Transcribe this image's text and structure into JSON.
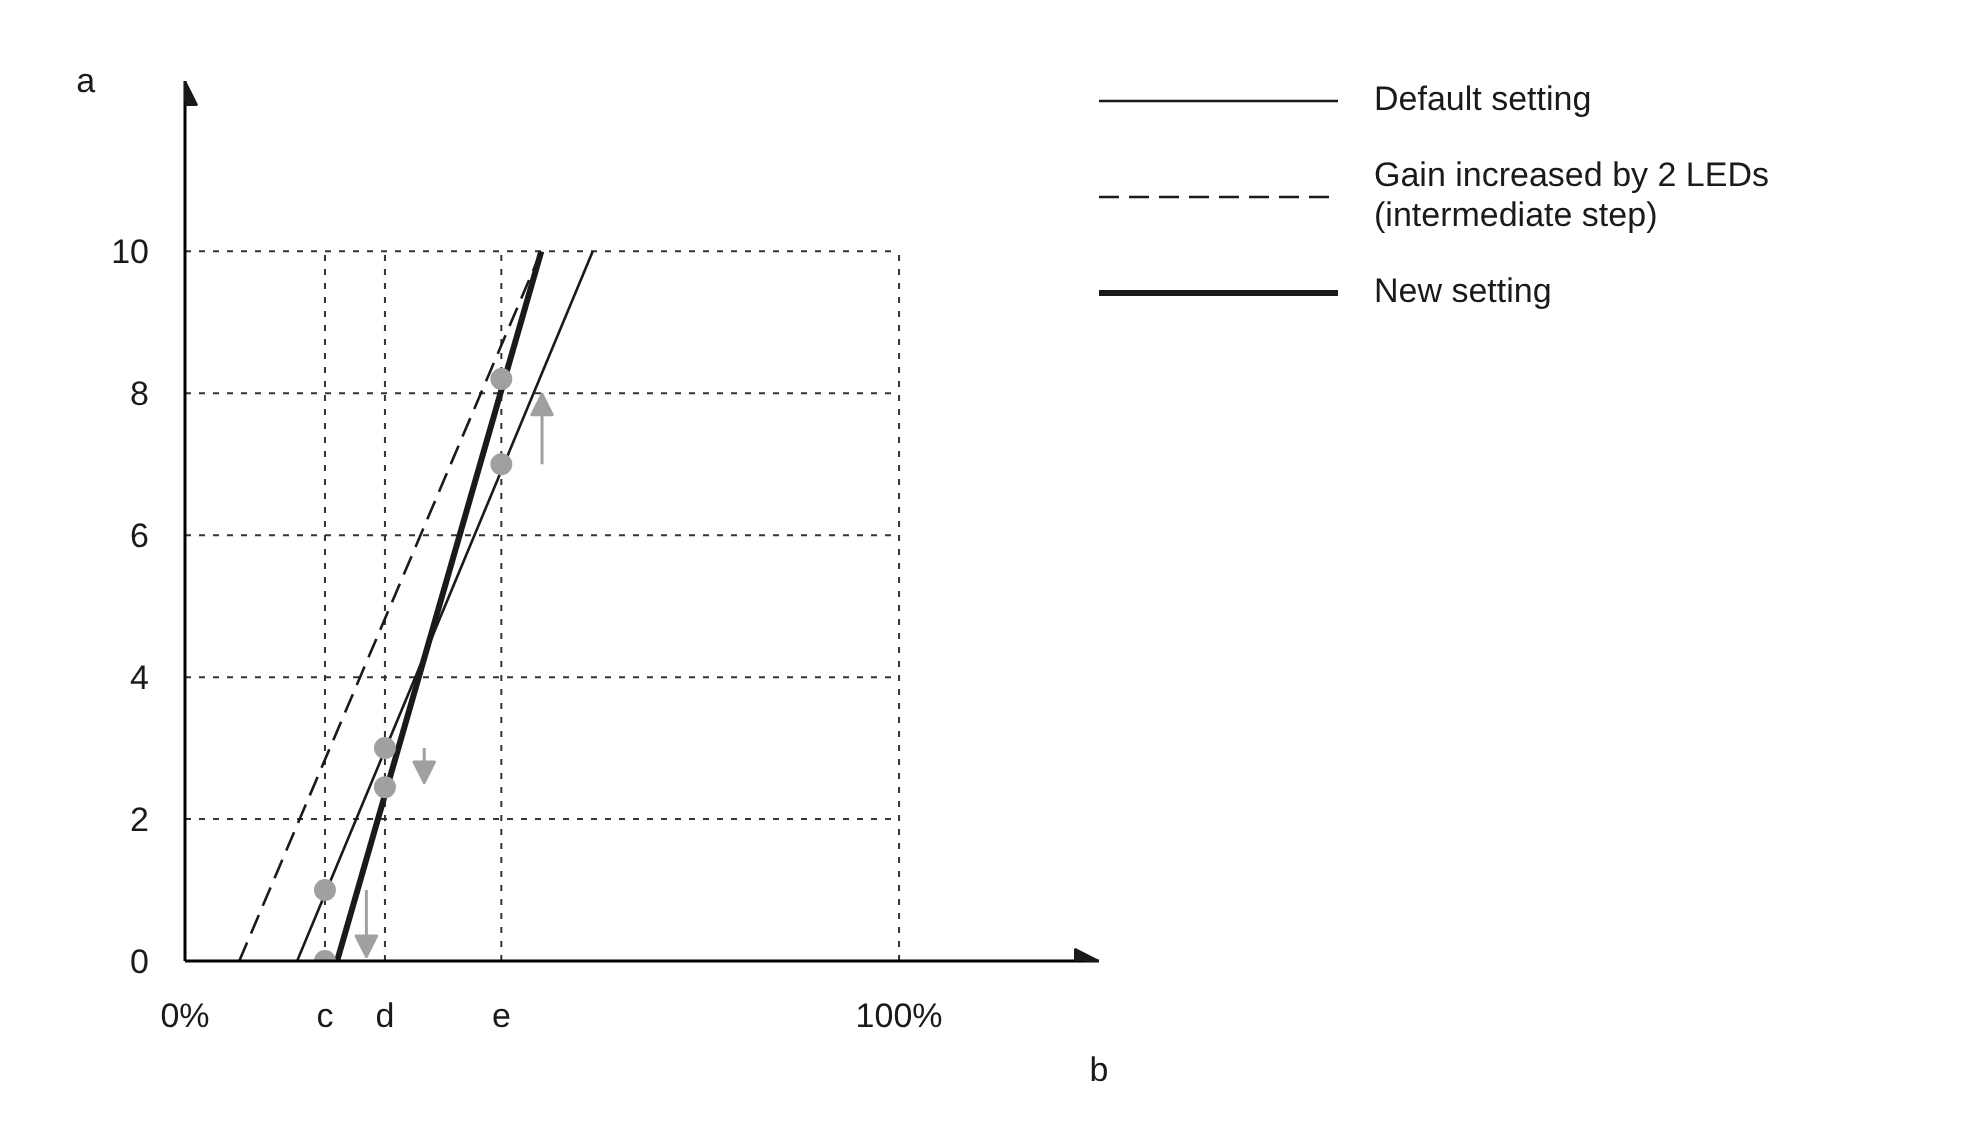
{
  "chart_data": {
    "type": "line",
    "xlabel": "b",
    "ylabel": "a",
    "xlim": [
      0,
      128
    ],
    "ylim": [
      0,
      12.4
    ],
    "xticks": [
      {
        "value": 0,
        "label": "0%"
      },
      {
        "value": 19.6,
        "label": "c"
      },
      {
        "value": 28,
        "label": "d"
      },
      {
        "value": 44.3,
        "label": "e"
      },
      {
        "value": 100,
        "label": "100%"
      }
    ],
    "yticks": [
      0,
      2,
      4,
      6,
      8,
      10
    ],
    "grid": true,
    "legend": "right",
    "series": [
      {
        "name": "Default setting",
        "color": "#1a1a1a",
        "line_style": "solid",
        "x": [
          15.7,
          57.1
        ],
        "values": [
          0,
          10
        ]
      },
      {
        "name": "Gain increased by 2 LEDs\n(intermediate step)",
        "color": "#1a1a1a",
        "line_style": "dashed",
        "x": [
          7.6,
          49.9
        ],
        "values": [
          0,
          10
        ]
      },
      {
        "name": "New setting",
        "color": "#1a1a1a",
        "line_style": "solid",
        "x": [
          21.3,
          49.9
        ],
        "values": [
          0,
          10
        ]
      },
      {
        "type": "scatter",
        "color": "#a0a0a0",
        "marker": "circle",
        "x": [
          19.6,
          19.6,
          28,
          28,
          44.3,
          44.3
        ],
        "values": [
          1.0,
          0,
          3.0,
          2.45,
          8.2,
          7.0
        ]
      }
    ]
  }
}
